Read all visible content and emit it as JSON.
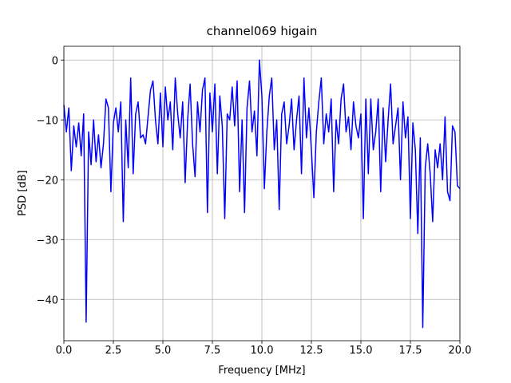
{
  "chart_data": {
    "type": "line",
    "title": "channel069 higain",
    "xlabel": "Frequency [MHz]",
    "ylabel": "PSD [dB]",
    "color": "#0000ff",
    "grid": true,
    "xlim": [
      0,
      20
    ],
    "ylim": [
      -46.9,
      2.3
    ],
    "xticks": [
      {
        "value": 0,
        "label": "0.0"
      },
      2.5,
      {
        "value": 5,
        "label": "5.0"
      },
      7.5,
      {
        "value": 10,
        "label": "10.0"
      },
      12.5,
      {
        "value": 15,
        "label": "15.0"
      },
      17.5,
      {
        "value": 20,
        "label": "20.0"
      }
    ],
    "yticks": [
      {
        "value": -40,
        "label": "−40"
      },
      {
        "value": -30,
        "label": "−30"
      },
      {
        "value": -20,
        "label": "−20"
      },
      {
        "value": -10,
        "label": "−10"
      },
      0
    ],
    "x": [
      0,
      0.125,
      0.25,
      0.375,
      0.5,
      0.625,
      0.75,
      0.875,
      1,
      1.125,
      1.25,
      1.375,
      1.5,
      1.625,
      1.75,
      1.875,
      2,
      2.125,
      2.25,
      2.375,
      2.5,
      2.625,
      2.75,
      2.875,
      3,
      3.125,
      3.25,
      3.375,
      3.5,
      3.625,
      3.75,
      3.875,
      4,
      4.125,
      4.25,
      4.375,
      4.5,
      4.625,
      4.75,
      4.875,
      5,
      5.125,
      5.25,
      5.375,
      5.5,
      5.625,
      5.75,
      5.875,
      6,
      6.125,
      6.25,
      6.375,
      6.5,
      6.625,
      6.75,
      6.875,
      7,
      7.125,
      7.25,
      7.375,
      7.5,
      7.625,
      7.75,
      7.875,
      8,
      8.125,
      8.25,
      8.375,
      8.5,
      8.625,
      8.75,
      8.875,
      9,
      9.125,
      9.25,
      9.375,
      9.5,
      9.625,
      9.75,
      9.875,
      10,
      10.125,
      10.25,
      10.375,
      10.5,
      10.625,
      10.75,
      10.875,
      11,
      11.125,
      11.25,
      11.375,
      11.5,
      11.625,
      11.75,
      11.875,
      12,
      12.125,
      12.25,
      12.375,
      12.5,
      12.625,
      12.75,
      12.875,
      13,
      13.125,
      13.25,
      13.375,
      13.5,
      13.625,
      13.75,
      13.875,
      14,
      14.125,
      14.25,
      14.375,
      14.5,
      14.625,
      14.75,
      14.875,
      15,
      15.125,
      15.25,
      15.375,
      15.5,
      15.625,
      15.75,
      15.875,
      16,
      16.125,
      16.25,
      16.375,
      16.5,
      16.625,
      16.75,
      16.875,
      17,
      17.125,
      17.25,
      17.375,
      17.5,
      17.625,
      17.75,
      17.875,
      18,
      18.125,
      18.25,
      18.375,
      18.5,
      18.625,
      18.75,
      18.875,
      19,
      19.125,
      19.25,
      19.375,
      19.5,
      19.625,
      19.75,
      19.875,
      20
    ],
    "values": [
      -7.5,
      -12,
      -8,
      -18.5,
      -11,
      -14.5,
      -10.5,
      -16,
      -9,
      -43.8,
      -12,
      -17.5,
      -10,
      -17,
      -12.5,
      -18,
      -14,
      -6.5,
      -8,
      -22,
      -10.5,
      -8,
      -12,
      -7,
      -27,
      -10,
      -18,
      -3,
      -19,
      -9,
      -7,
      -13,
      -12.5,
      -14,
      -9.5,
      -5,
      -3.5,
      -10,
      -14,
      -5.5,
      -14.5,
      -4.5,
      -10,
      -7,
      -15,
      -3,
      -9,
      -13,
      -7,
      -20.5,
      -10,
      -4,
      -14,
      -19.5,
      -7,
      -12,
      -5,
      -3,
      -25.5,
      -5.5,
      -12,
      -4,
      -19,
      -6,
      -11,
      -26.5,
      -9,
      -10,
      -4.5,
      -11,
      -3.5,
      -22,
      -10,
      -25.5,
      -8,
      -3.5,
      -12,
      -8.5,
      -16,
      0,
      -6,
      -21.5,
      -12,
      -6,
      -3,
      -15,
      -10,
      -25,
      -9,
      -7,
      -14,
      -11,
      -6.5,
      -15,
      -10,
      -6,
      -19,
      -3,
      -13,
      -8,
      -15,
      -23,
      -12,
      -7,
      -3,
      -14,
      -9,
      -12,
      -6.5,
      -22,
      -10,
      -14,
      -6.5,
      -4,
      -12,
      -9.5,
      -15,
      -7,
      -11,
      -13,
      -9,
      -26.5,
      -6.5,
      -19,
      -6.5,
      -15,
      -12,
      -6.5,
      -22,
      -8,
      -17,
      -10,
      -4,
      -14,
      -11,
      -8,
      -20,
      -7,
      -13,
      -9.5,
      -26.5,
      -10.5,
      -15,
      -29,
      -13,
      -44.7,
      -18,
      -14,
      -19,
      -27,
      -15,
      -18,
      -14,
      -20,
      -9.5,
      -22,
      -23.5,
      -11,
      -12,
      -21,
      -21.5
    ]
  }
}
